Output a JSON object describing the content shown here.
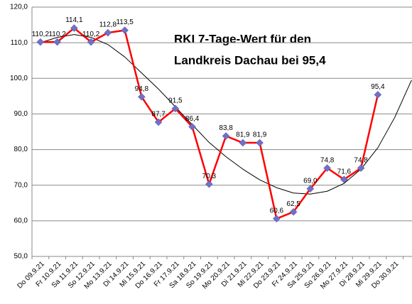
{
  "chart_data": {
    "type": "line",
    "title": [
      "RKI  7-Tage-Wert  für den",
      "Landkreis Dachau bei  95,4"
    ],
    "categories": [
      "Do 09.9.21",
      "Fr 10.9.21",
      "Sa 11.9.21",
      "So 12.9.21",
      "Mo 13.9.21",
      "Di 14.9.21",
      "Mi 15.9.21",
      "Do 16.9.21",
      "Fr 17.9.21",
      "Sa 18.9.21",
      "So 19.9.21",
      "Mo 20.9.21",
      "Di 21.9.21",
      "Mi 22.9.21",
      "Do 23.9.21",
      "Fr 24.9.21",
      "Sa 25.9.21",
      "So 26.9.21",
      "Mo 27.9.21",
      "Di 28.9.21",
      "Mi 29.9.21",
      "Do 30.9.21",
      null
    ],
    "series": [
      {
        "color": "#ff0000",
        "marker_color": "#7070c8",
        "values": [
          110.2,
          110.2,
          114.1,
          110.2,
          112.8,
          113.5,
          94.8,
          87.7,
          91.5,
          86.4,
          70.3,
          83.8,
          81.9,
          81.9,
          60.6,
          62.5,
          69.0,
          74.8,
          71.6,
          74.8,
          95.4,
          null,
          null
        ],
        "value_labels": [
          "110,2",
          "110,2",
          "114,1",
          "110,2",
          "112,8",
          "113,5",
          "94,8",
          "87,7",
          "91,5",
          "86,4",
          "70,3",
          "83,8",
          "81,9",
          "81,9",
          "60,6",
          "62,5",
          "69,0",
          "74,8",
          "71,6",
          "74,8",
          "95,4",
          null,
          null
        ]
      },
      {
        "color": "#000000",
        "values": [
          110,
          111.5,
          112.3,
          111.5,
          109.5,
          106,
          101.5,
          97,
          92,
          87,
          82,
          78,
          74.5,
          71.5,
          69.3,
          67.8,
          67.5,
          68.3,
          70.5,
          74.5,
          80.5,
          89,
          99.5
        ]
      }
    ],
    "ylim": [
      50,
      120
    ],
    "yticks": [
      {
        "value": 50,
        "label": "50,0"
      },
      {
        "value": 60,
        "label": "60,0"
      },
      {
        "value": 70,
        "label": "70,0"
      },
      {
        "value": 80,
        "label": "80,0"
      },
      {
        "value": 90,
        "label": "90,0"
      },
      {
        "value": 100,
        "label": "100,0"
      },
      {
        "value": 110,
        "label": "110,0"
      },
      {
        "value": 120,
        "label": "120,0"
      }
    ],
    "grid": true
  }
}
